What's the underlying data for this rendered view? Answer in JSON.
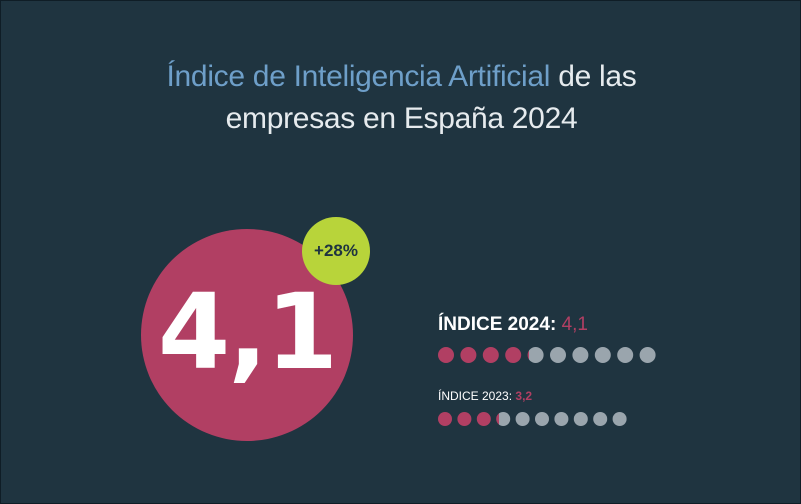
{
  "title": {
    "accent": "Índice de Inteligencia Artificial",
    "rest": " de las",
    "line2": "empresas en España 2024"
  },
  "main_value": "4,1",
  "change_badge": "+28%",
  "chart_data": {
    "type": "dot-scale",
    "scale_max": 10,
    "series": [
      {
        "name": "ÍNDICE 2024",
        "value": 4.1,
        "value_label": "4,1"
      },
      {
        "name": "ÍNDICE 2023",
        "value": 3.2,
        "value_label": "3,2"
      }
    ],
    "colors": {
      "filled": "#b13f63",
      "empty": "#9aa5ad"
    }
  },
  "labels": {
    "idx2024_name": "ÍNDICE 2024:",
    "idx2024_value": "4,1",
    "idx2023_name": "ÍNDICE 2023:",
    "idx2023_value": "3,2"
  }
}
